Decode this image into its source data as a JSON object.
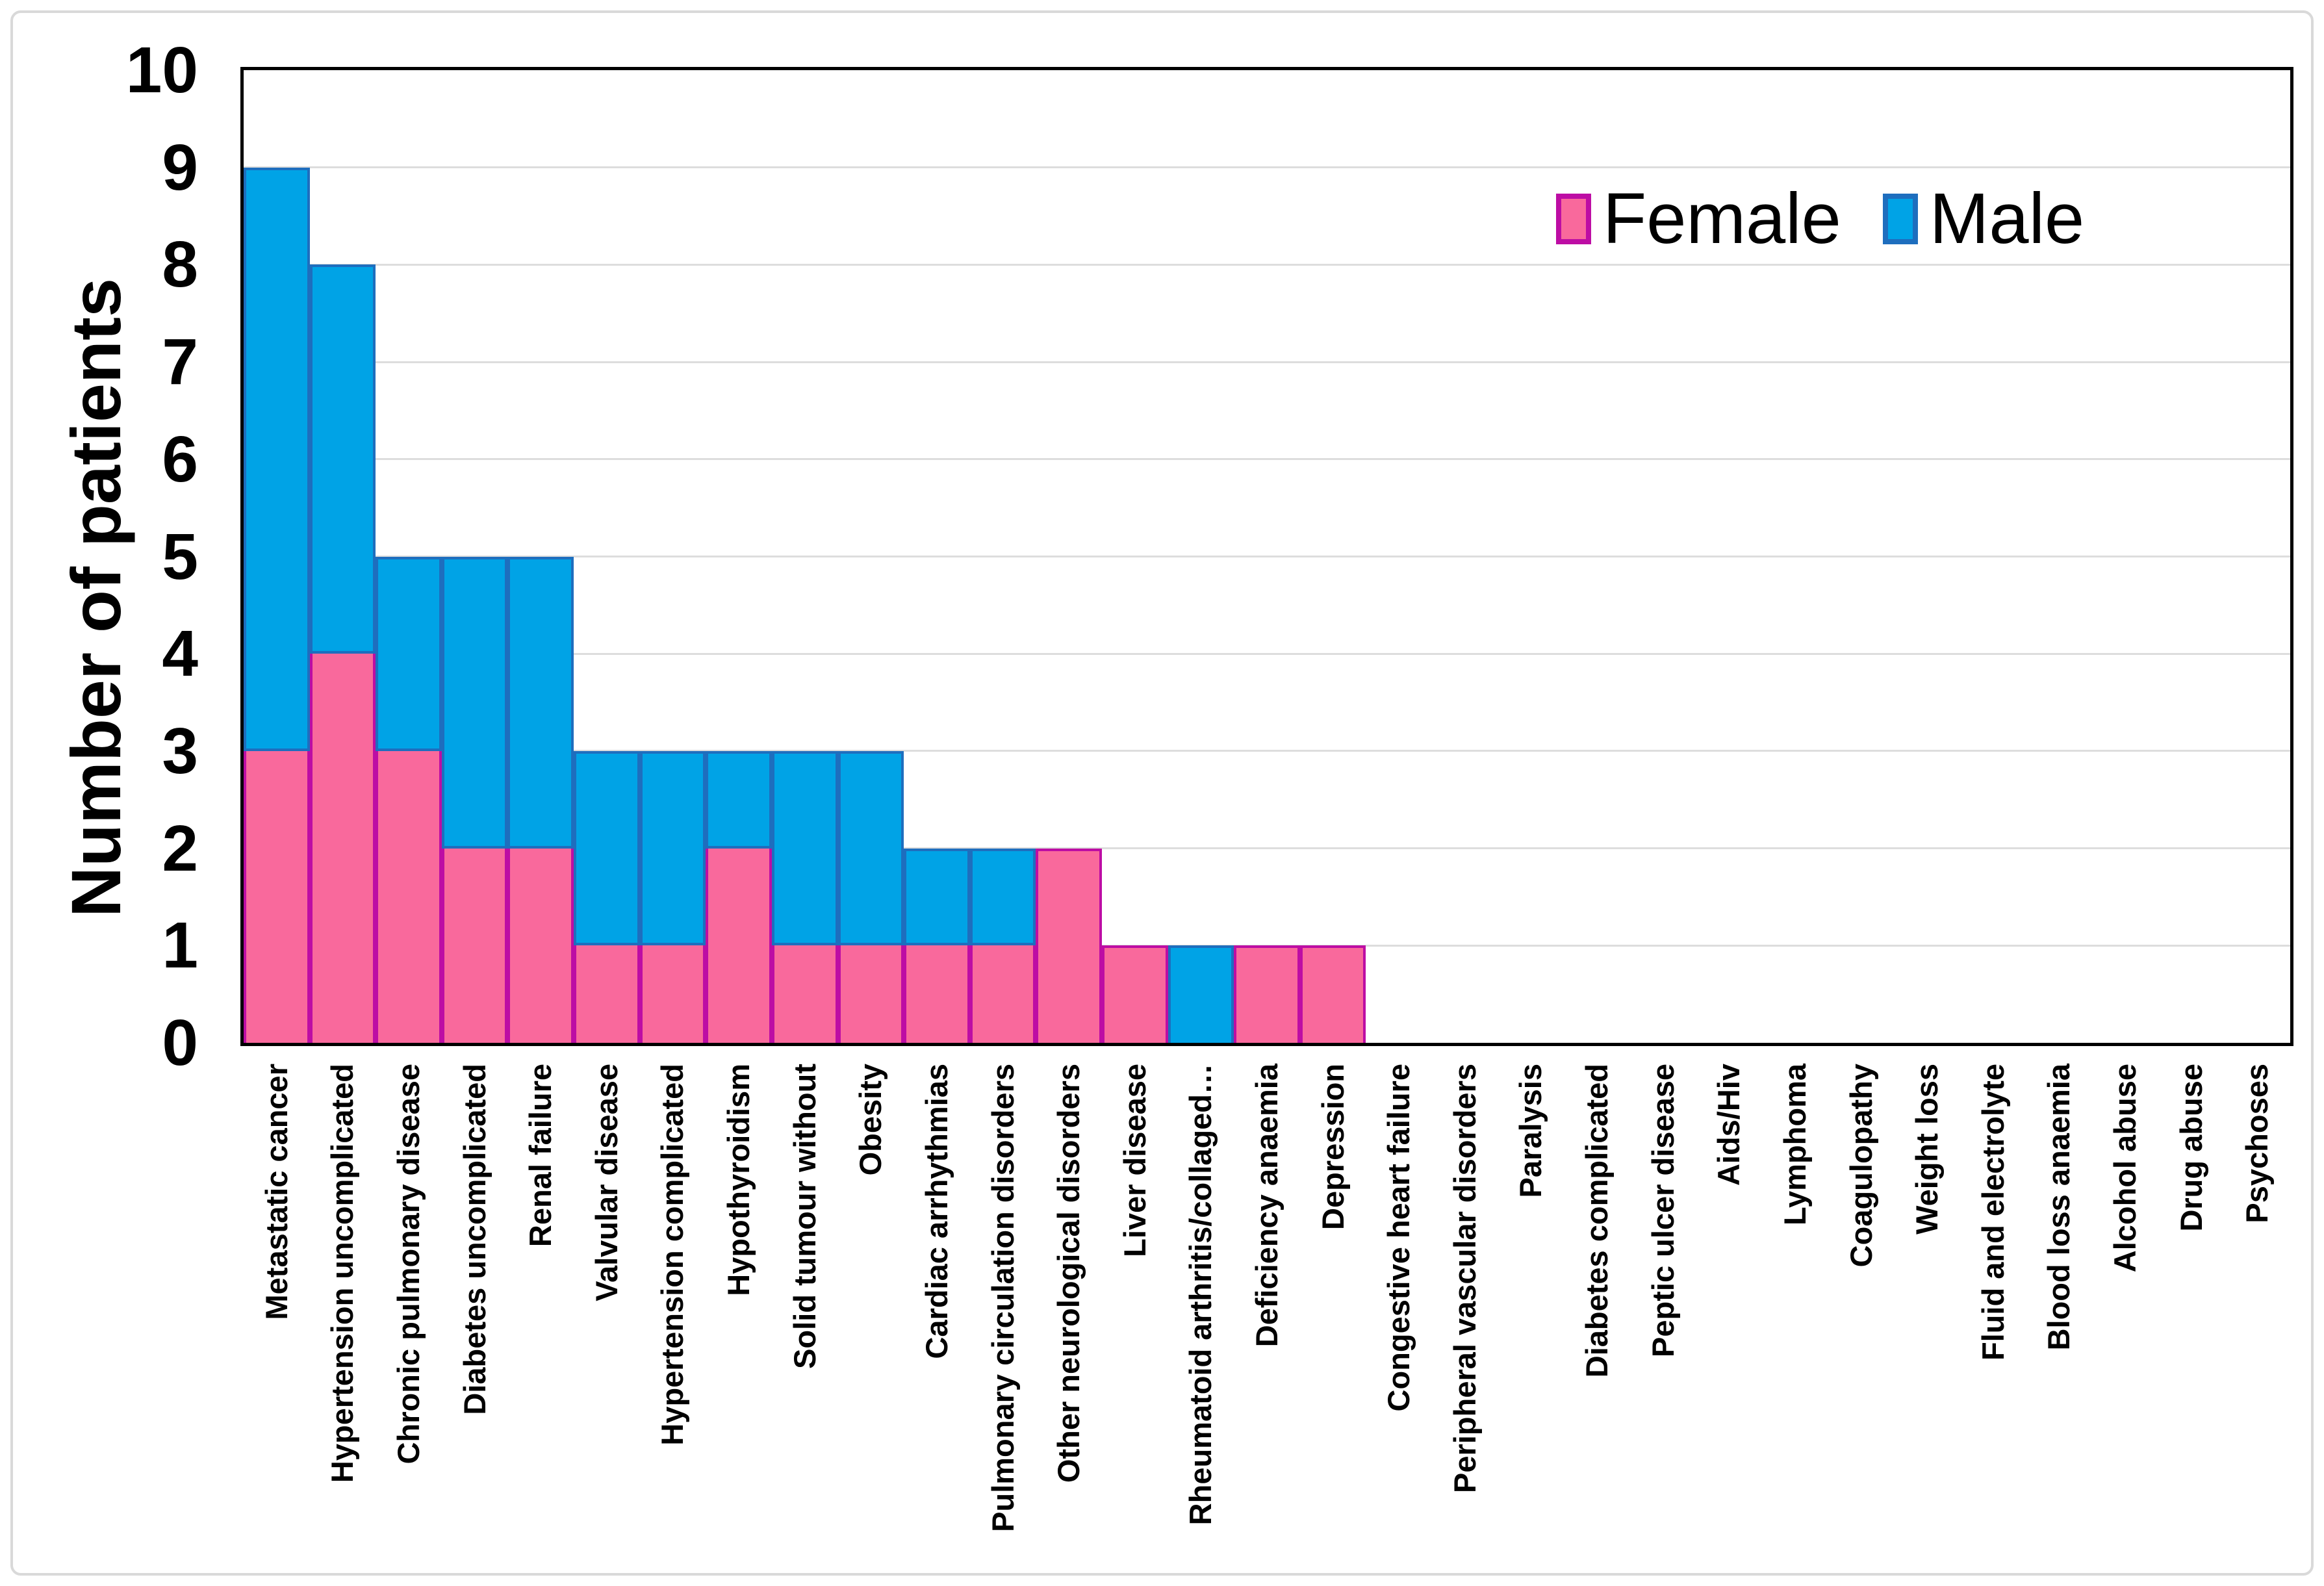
{
  "chart_data": {
    "type": "bar",
    "stacked": true,
    "title": "",
    "xlabel": "",
    "ylabel": "Number of patients",
    "ylim": [
      0,
      10
    ],
    "ytick_step": 1,
    "yticks": [
      0,
      1,
      2,
      3,
      4,
      5,
      6,
      7,
      8,
      9,
      10
    ],
    "grid": "horizontal gridlines at 1-9, light gray",
    "legend_position": "inside top-right",
    "categories": [
      "Metastatic cancer",
      "Hypertension uncomplicated",
      "Chronic pulmonary disease",
      "Diabetes uncomplicated",
      "Renal failure",
      "Valvular disease",
      "Hypertension complicated",
      "Hypothyroidism",
      "Solid tumour without",
      "Obesity",
      "Cardiac arrhythmias",
      "Pulmonary circulation disorders",
      "Other neurological disorders",
      "Liver disease",
      "Rheumatoid arthritis/collaged…",
      "Deficiency anaemia",
      "Depression",
      "Congestive heart failure",
      "Peripheral vascular disorders",
      "Paralysis",
      "Diabetes complicated",
      "Peptic ulcer disease",
      "Aids/Hiv",
      "Lymphoma",
      "Coagulopathy",
      "Weight loss",
      "Fluid and electrolyte",
      "Blood loss anaemia",
      "Alcohol abuse",
      "Drug abuse",
      "Psychoses"
    ],
    "series": [
      {
        "name": "Female",
        "fill": "#F9699C",
        "border": "#BD0DA4",
        "values": [
          3,
          4,
          3,
          2,
          2,
          1,
          1,
          2,
          1,
          1,
          1,
          1,
          2,
          1,
          0,
          1,
          1,
          0,
          0,
          0,
          0,
          0,
          0,
          0,
          0,
          0,
          0,
          0,
          0,
          0,
          0
        ]
      },
      {
        "name": "Male",
        "fill": "#00A3E6",
        "border": "#1E6EBE",
        "values": [
          6,
          4,
          2,
          3,
          3,
          2,
          2,
          1,
          2,
          2,
          1,
          1,
          0,
          0,
          1,
          0,
          0,
          0,
          0,
          0,
          0,
          0,
          0,
          0,
          0,
          0,
          0,
          0,
          0,
          0,
          0
        ]
      }
    ]
  },
  "colors": {
    "background": "#FFFFFF",
    "figure_border": "#D9D9D9",
    "plot_border": "#000000",
    "grid": "#DDDDDD",
    "text": "#000000"
  }
}
